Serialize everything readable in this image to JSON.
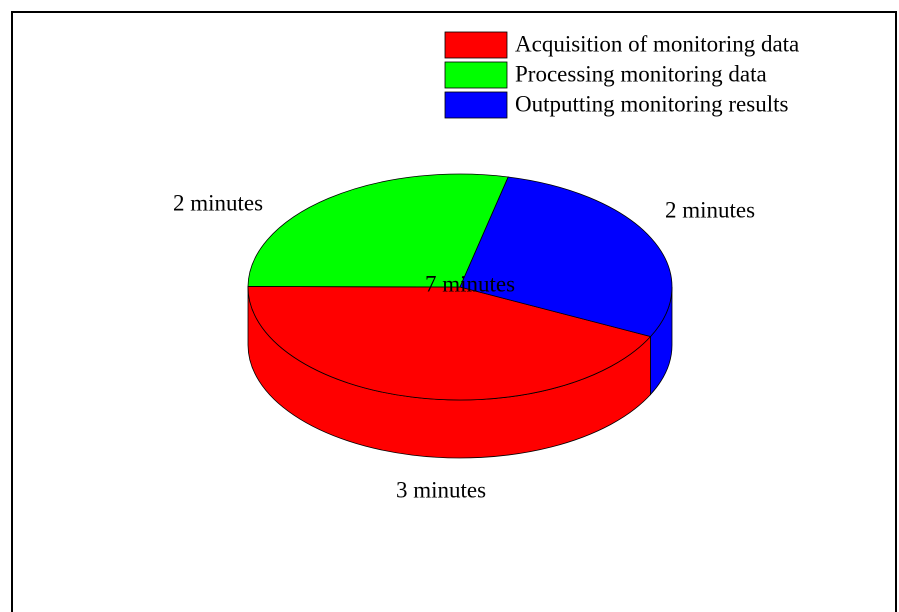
{
  "chart_data": {
    "type": "pie3d",
    "categories": [
      "Acquisition of monitoring data",
      "Processing monitoring data",
      "Outputting monitoring results"
    ],
    "values": [
      3,
      2,
      2
    ],
    "value_labels": [
      "3 minutes",
      "2 minutes",
      "2 minutes"
    ],
    "colors": [
      "#ff0000",
      "#00ff00",
      "#0000ff"
    ],
    "center_label": "7 minutes",
    "legend": "upper right"
  }
}
